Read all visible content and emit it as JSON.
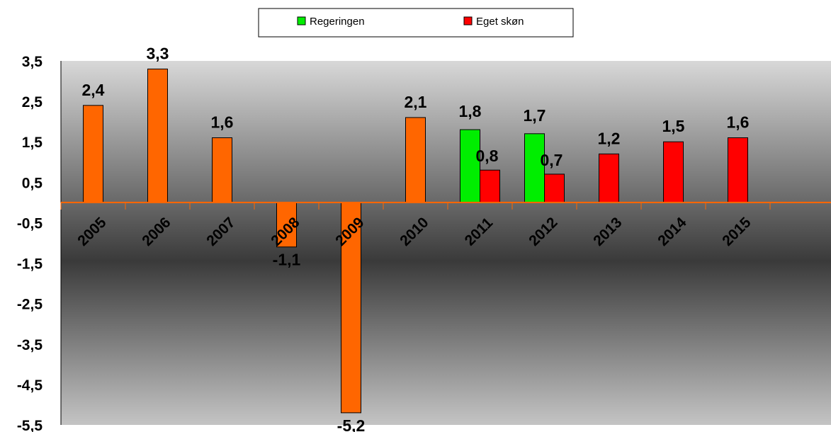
{
  "chart_data": {
    "type": "bar",
    "categories": [
      "2005",
      "2006",
      "2007",
      "2008",
      "2009",
      "2010",
      "2011",
      "2012",
      "2013",
      "2014",
      "2015"
    ],
    "series": [
      {
        "values": [
          2.4,
          3.3,
          1.6,
          -1.1,
          -5.2,
          2.1,
          null,
          null,
          null,
          null,
          null
        ]
      },
      {
        "name": "Regeringen",
        "values": [
          null,
          null,
          null,
          null,
          null,
          null,
          1.8,
          1.7,
          null,
          null,
          null
        ]
      },
      {
        "name": "Eget skøn",
        "values": [
          null,
          null,
          null,
          null,
          null,
          null,
          0.8,
          0.7,
          1.2,
          1.5,
          1.6
        ]
      }
    ],
    "data_labels": [
      "2,4",
      "3,3",
      "1,6",
      "-1,1",
      "-5,2",
      "2,1",
      "1,8",
      "0,8",
      "1,7",
      "0,7",
      "1,2",
      "1,5",
      "1,6"
    ],
    "y_ticks": [
      "3,5",
      "2,5",
      "1,5",
      "0,5",
      "-0,5",
      "-1,5",
      "-2,5",
      "-3,5",
      "-4,5",
      "-5,5"
    ],
    "ylim": [
      -5.5,
      3.5
    ],
    "legend_position": "top-center",
    "grid": false,
    "colors": {
      "history": "#ff6600",
      "regeringen": "#00ee00",
      "eget_skon": "#ff0000",
      "axis": "#ff6600",
      "plot_top": "#d8d8d8",
      "plot_mid": "#3a3a3a",
      "plot_bottom": "#c4c4c4"
    }
  }
}
